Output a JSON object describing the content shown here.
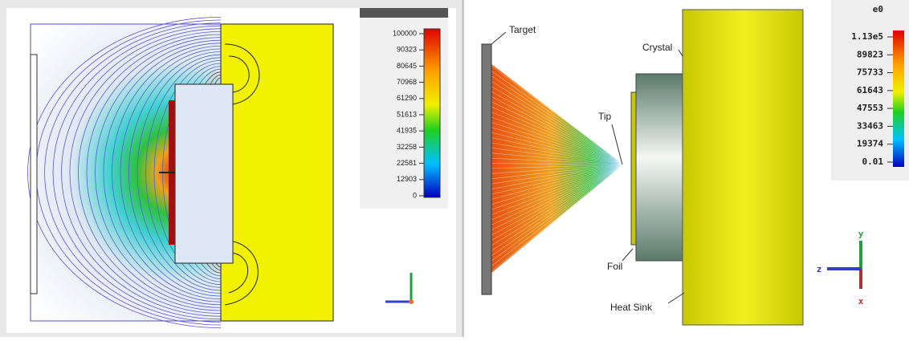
{
  "left_panel": {
    "colorbar": {
      "labels": [
        "100000",
        "90323",
        "80645",
        "70968",
        "61290",
        "51613",
        "41935",
        "32258",
        "22581",
        "12903",
        "0"
      ]
    }
  },
  "right_panel": {
    "colorbar": {
      "title": "e0",
      "labels": [
        "1.13e5",
        "89823",
        "75733",
        "61643",
        "47553",
        "33463",
        "19374",
        "0.01"
      ]
    },
    "annotations": [
      "Target",
      "Crystal",
      "Tip",
      "Foil",
      "Heat Sink"
    ],
    "axes": [
      "y",
      "z",
      "x"
    ]
  }
}
